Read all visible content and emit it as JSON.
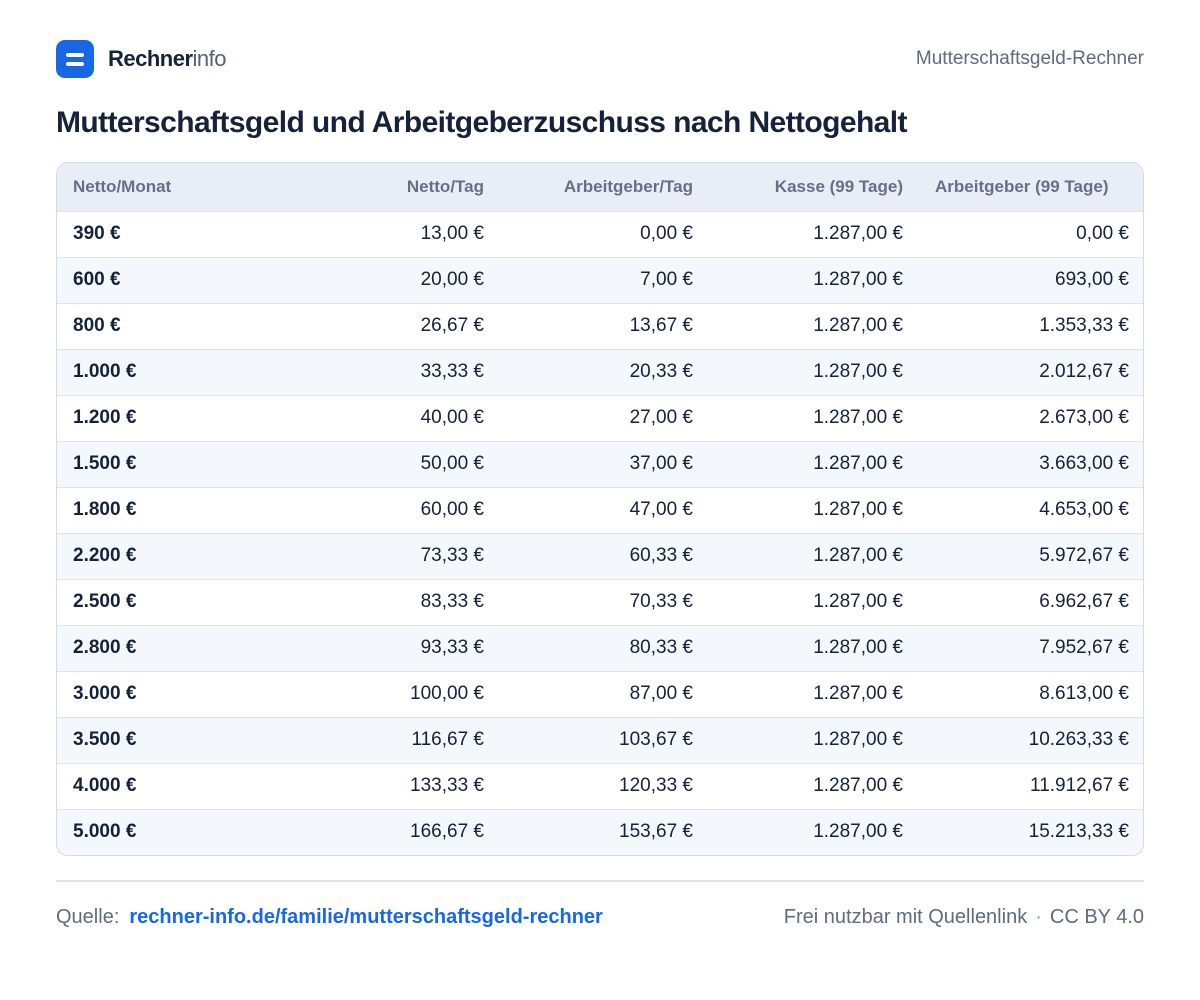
{
  "header": {
    "brand_strong": "Rechner",
    "brand_light": "info",
    "logo_icon": "equals-icon",
    "page_label": "Mutterschaftsgeld-Rechner"
  },
  "title": "Mutterschaftsgeld und Arbeitgeberzuschuss nach Nettogehalt",
  "table": {
    "columns": [
      "Netto/Monat",
      "Netto/Tag",
      "Arbeitgeber/Tag",
      "Kasse (99 Tage)",
      "Arbeitgeber (99 Tage)"
    ],
    "rows": [
      [
        "390 €",
        "13,00 €",
        "0,00 €",
        "1.287,00 €",
        "0,00 €"
      ],
      [
        "600 €",
        "20,00 €",
        "7,00 €",
        "1.287,00 €",
        "693,00 €"
      ],
      [
        "800 €",
        "26,67 €",
        "13,67 €",
        "1.287,00 €",
        "1.353,33 €"
      ],
      [
        "1.000 €",
        "33,33 €",
        "20,33 €",
        "1.287,00 €",
        "2.012,67 €"
      ],
      [
        "1.200 €",
        "40,00 €",
        "27,00 €",
        "1.287,00 €",
        "2.673,00 €"
      ],
      [
        "1.500 €",
        "50,00 €",
        "37,00 €",
        "1.287,00 €",
        "3.663,00 €"
      ],
      [
        "1.800 €",
        "60,00 €",
        "47,00 €",
        "1.287,00 €",
        "4.653,00 €"
      ],
      [
        "2.200 €",
        "73,33 €",
        "60,33 €",
        "1.287,00 €",
        "5.972,67 €"
      ],
      [
        "2.500 €",
        "83,33 €",
        "70,33 €",
        "1.287,00 €",
        "6.962,67 €"
      ],
      [
        "2.800 €",
        "93,33 €",
        "80,33 €",
        "1.287,00 €",
        "7.952,67 €"
      ],
      [
        "3.000 €",
        "100,00 €",
        "87,00 €",
        "1.287,00 €",
        "8.613,00 €"
      ],
      [
        "3.500 €",
        "116,67 €",
        "103,67 €",
        "1.287,00 €",
        "10.263,33 €"
      ],
      [
        "4.000 €",
        "133,33 €",
        "120,33 €",
        "1.287,00 €",
        "11.912,67 €"
      ],
      [
        "5.000 €",
        "166,67 €",
        "153,67 €",
        "1.287,00 €",
        "15.213,33 €"
      ]
    ]
  },
  "footer": {
    "source_prefix": "Quelle:",
    "source_link": "rechner-info.de/familie/mutterschaftsgeld-rechner",
    "license_text": "Frei nutzbar mit Quellenlink",
    "separator": "·",
    "license_name": "CC BY 4.0"
  },
  "colors": {
    "accent": "#1767e6",
    "text": "#15223a",
    "muted": "#5f6b80",
    "header_bg": "#e9eef6",
    "stripe_bg": "#f4f7fb",
    "border": "#d4dbe6"
  }
}
